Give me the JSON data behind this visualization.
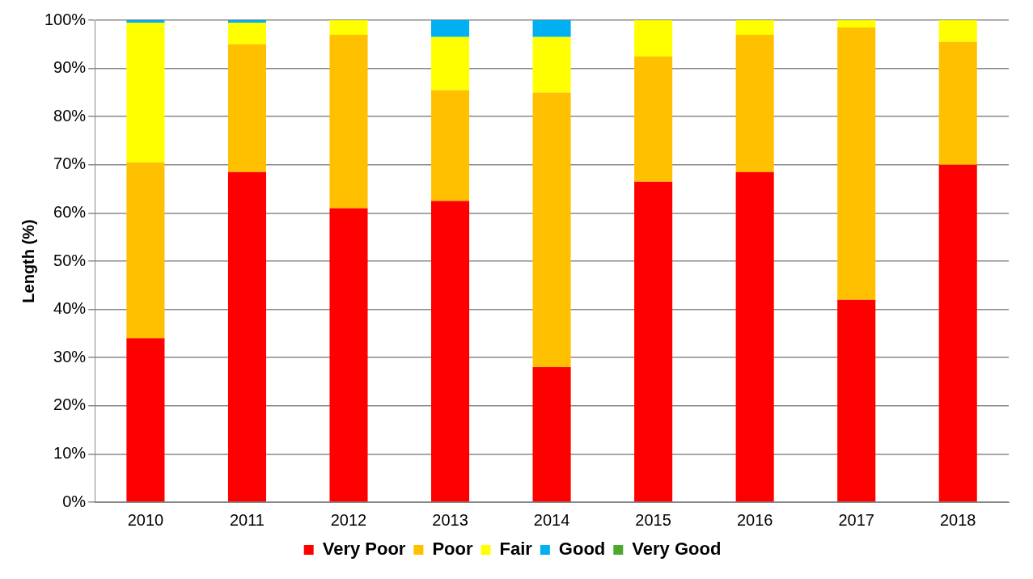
{
  "chart_data": {
    "type": "bar",
    "stacked": true,
    "ylabel": "Length (%)",
    "categories": [
      "2010",
      "2011",
      "2012",
      "2013",
      "2014",
      "2015",
      "2016",
      "2017",
      "2018"
    ],
    "series": [
      {
        "name": "Very Poor",
        "color": "#ff0000",
        "values": [
          34,
          68.5,
          61,
          62.5,
          28,
          66.5,
          68.5,
          42,
          70
        ]
      },
      {
        "name": "Poor",
        "color": "#ffc000",
        "values": [
          36.5,
          26.5,
          36,
          23,
          57,
          26,
          28.5,
          56.5,
          25.5
        ]
      },
      {
        "name": "Fair",
        "color": "#ffff00",
        "values": [
          29,
          4.5,
          3,
          11,
          11.5,
          7.5,
          3,
          1.5,
          4.5
        ]
      },
      {
        "name": "Good",
        "color": "#00b0f0",
        "values": [
          0.5,
          0.5,
          0,
          3.5,
          3.5,
          0,
          0,
          0,
          0
        ]
      },
      {
        "name": "Very Good",
        "color": "#4ea72e",
        "values": [
          0,
          0,
          0,
          0,
          0,
          0,
          0,
          0,
          0
        ]
      }
    ],
    "ylim": [
      0,
      100
    ],
    "yticks": [
      {
        "value": 0,
        "label": "0%"
      },
      {
        "value": 10,
        "label": "10%"
      },
      {
        "value": 20,
        "label": "20%"
      },
      {
        "value": 30,
        "label": "30%"
      },
      {
        "value": 40,
        "label": "40%"
      },
      {
        "value": 50,
        "label": "50%"
      },
      {
        "value": 60,
        "label": "60%"
      },
      {
        "value": 70,
        "label": "70%"
      },
      {
        "value": 80,
        "label": "80%"
      },
      {
        "value": 90,
        "label": "90%"
      },
      {
        "value": 100,
        "label": "100%"
      }
    ],
    "grid": "y",
    "legend": "bottom"
  }
}
